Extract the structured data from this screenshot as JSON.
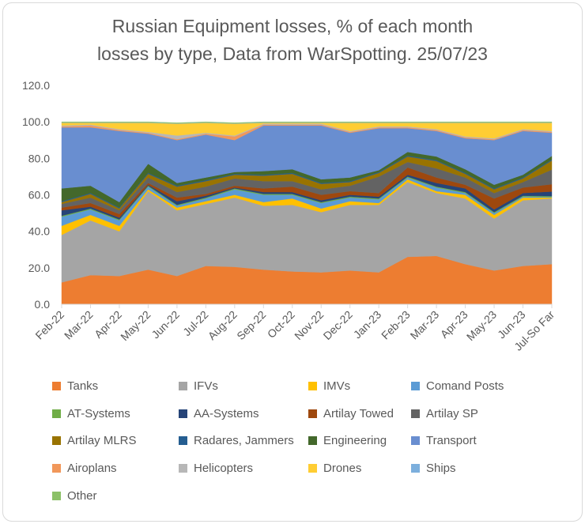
{
  "chart_data": {
    "type": "area",
    "stacked": true,
    "title": "Russian Equipment losses, % of each month losses by type, Data from WarSpotting. 25/07/23",
    "title_lines": [
      "Russian Equipment losses, % of each month",
      "losses by type, Data from WarSpotting. 25/07/23"
    ],
    "xlabel": "",
    "ylabel": "",
    "ylim": [
      0,
      120
    ],
    "yticks": [
      "0.0",
      "20.0",
      "40.0",
      "60.0",
      "80.0",
      "100.0",
      "120.0"
    ],
    "grid": false,
    "legend_position": "bottom",
    "categories": [
      "Feb-22",
      "Mar-22",
      "Apr-22",
      "May-22",
      "Jun-22",
      "Jul-22",
      "Aug-22",
      "Sep-22",
      "Oct-22",
      "Nov-22",
      "Dec-22",
      "Jan-23",
      "Feb-23",
      "Mar-23",
      "Apr-23",
      "May-23",
      "Jun-23",
      "Jul-So Far"
    ],
    "series": [
      {
        "name": "Tanks",
        "color": "#ED7D31",
        "values": [
          12,
          16,
          15.5,
          19,
          15.5,
          21,
          20.5,
          19,
          18,
          17.5,
          18.5,
          17.5,
          26,
          26.5,
          22,
          18.5,
          21,
          22
        ]
      },
      {
        "name": "IFVs",
        "color": "#A5A5A5",
        "values": [
          26,
          30,
          24.5,
          43,
          36,
          34,
          38,
          35,
          36.5,
          33,
          36,
          37,
          41,
          34.5,
          36,
          28.5,
          36,
          36
        ]
      },
      {
        "name": "IMVs",
        "color": "#FFC000",
        "values": [
          5,
          3,
          3,
          1,
          1.5,
          1.5,
          1.5,
          2,
          3.5,
          2,
          2,
          1,
          1.5,
          1,
          2,
          2,
          1.5,
          0.5
        ]
      },
      {
        "name": "Comand Posts",
        "color": "#5B9BD5",
        "values": [
          5,
          3,
          3,
          1.5,
          1,
          1.5,
          3,
          4,
          2,
          3,
          2,
          2,
          1,
          2,
          1,
          1,
          0.5,
          0.3
        ]
      },
      {
        "name": "AT-Systems",
        "color": "#70AD47",
        "values": [
          0.5,
          0.5,
          0.5,
          0.5,
          0.5,
          0.5,
          0.5,
          0.5,
          0.5,
          0.5,
          0.5,
          0.5,
          0.5,
          0.5,
          0.5,
          0.5,
          0.5,
          0.5
        ]
      },
      {
        "name": "AA-Systems",
        "color": "#264478",
        "values": [
          3,
          1,
          1,
          0.5,
          2,
          1,
          0.5,
          1,
          1,
          1,
          1,
          1,
          1,
          2,
          2,
          1.5,
          1.5,
          2.5
        ]
      },
      {
        "name": "Artilay Towed",
        "color": "#9E480E",
        "values": [
          1.5,
          2,
          2,
          1,
          2,
          1,
          1,
          2,
          3,
          3,
          2,
          2,
          4,
          3,
          2,
          6,
          3,
          4
        ]
      },
      {
        "name": "Artilay SP",
        "color": "#636363",
        "values": [
          2,
          3,
          2,
          3,
          3,
          4,
          4,
          4,
          3,
          3,
          3,
          9,
          3,
          5,
          4,
          3,
          3,
          8
        ]
      },
      {
        "name": "Artilay MLRS",
        "color": "#997300",
        "values": [
          1,
          2,
          1,
          2,
          3,
          3,
          2,
          3,
          4,
          3,
          2,
          2,
          3,
          4,
          2,
          2,
          2,
          5
        ]
      },
      {
        "name": "Radares, Jammers",
        "color": "#255E91",
        "values": [
          0.5,
          0.5,
          0.5,
          0.5,
          0.5,
          0.5,
          0.5,
          0.5,
          0.5,
          0.5,
          0.5,
          0.5,
          0.5,
          0.5,
          0.5,
          0.5,
          0.5,
          0.5
        ]
      },
      {
        "name": "Engineering",
        "color": "#43682B",
        "values": [
          7,
          4,
          3,
          5,
          1.5,
          1.5,
          1,
          2,
          2,
          2,
          2,
          1,
          2,
          2,
          2,
          2,
          1.5,
          2
        ]
      },
      {
        "name": "Transport",
        "color": "#698ED0",
        "values": [
          33.5,
          32,
          39,
          16.5,
          23.5,
          23.5,
          17.5,
          25,
          24,
          29.5,
          24.5,
          23,
          13,
          14,
          17,
          24.5,
          24,
          12.7
        ]
      },
      {
        "name": "Airoplans",
        "color": "#F1975A",
        "values": [
          0.5,
          1,
          0.5,
          0.5,
          0.5,
          0.5,
          2,
          0.5,
          0.5,
          0.5,
          0.5,
          0.5,
          0.5,
          0.5,
          0.5,
          0.5,
          0.5,
          0.5
        ]
      },
      {
        "name": "Helicopters",
        "color": "#B7B7B7",
        "values": [
          0.5,
          0.5,
          0.5,
          0.5,
          2,
          0.5,
          0.5,
          0.5,
          0.5,
          0.5,
          0.5,
          0.5,
          0.5,
          0.5,
          0.5,
          0.5,
          0.5,
          0.5
        ]
      },
      {
        "name": "Drones",
        "color": "#FFCD33",
        "values": [
          1.5,
          1,
          3.5,
          5,
          6.5,
          5.5,
          6.5,
          0.5,
          0.5,
          0.5,
          4.5,
          2,
          2,
          3.5,
          7.5,
          8.5,
          3.5,
          4.5
        ]
      },
      {
        "name": "Ships",
        "color": "#7CAFDD",
        "values": [
          0.2,
          0.2,
          0.2,
          0.2,
          0.2,
          0.2,
          0.2,
          0.2,
          0.2,
          0.2,
          0.2,
          0.2,
          0.2,
          0.2,
          0.2,
          0.2,
          0.2,
          0.2
        ]
      },
      {
        "name": "Other",
        "color": "#8CC168",
        "values": [
          0.3,
          0.3,
          0.3,
          0.3,
          0.3,
          0.3,
          0.3,
          0.3,
          0.3,
          0.3,
          0.3,
          0.3,
          0.3,
          0.3,
          0.3,
          0.3,
          0.3,
          0.3
        ]
      }
    ]
  }
}
